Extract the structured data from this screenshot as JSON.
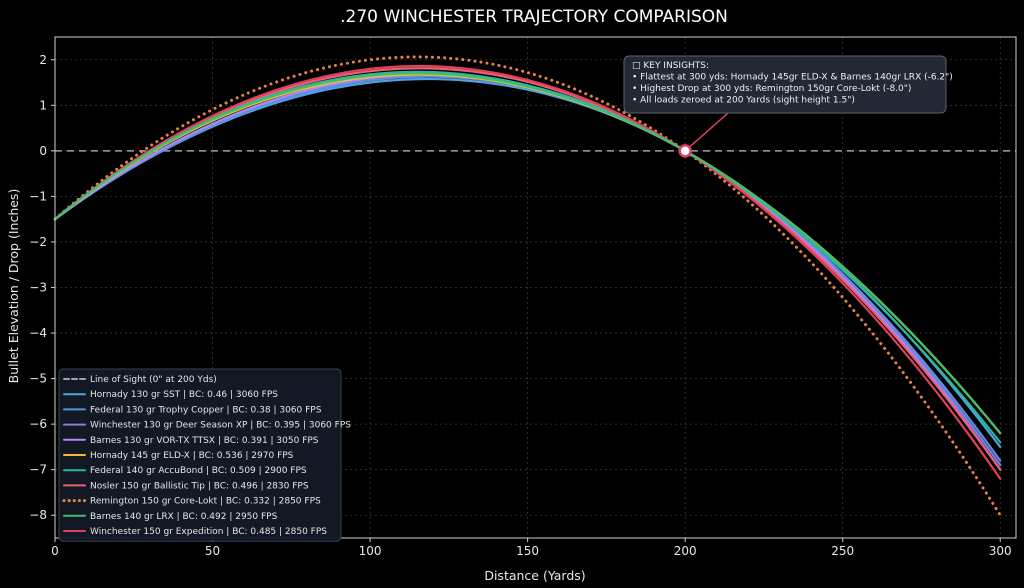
{
  "chart_data": {
    "type": "line",
    "title": ".270 WINCHESTER TRAJECTORY COMPARISON",
    "xlabel": "Distance (Yards)",
    "ylabel": "Bullet Elevation / Drop (Inches)",
    "xlim": [
      0,
      305
    ],
    "ylim": [
      -8.5,
      2.5
    ],
    "xticks": [
      "0",
      "50",
      "100",
      "150",
      "200",
      "250",
      "300"
    ],
    "yticks": [
      "2",
      "1",
      "0",
      "−1",
      "−2",
      "−3",
      "−4",
      "−5",
      "−6",
      "−7",
      "−8"
    ],
    "grid": true,
    "legend_position": "bottom-left",
    "line_of_sight": {
      "name": "Line of Sight (0\" at 200 Yds)",
      "y": 0,
      "color": "#9aa3b5",
      "style": "dashed"
    },
    "series": [
      {
        "name": "Hornady 130 gr SST | BC: 0.46 | 3060 FPS",
        "color": "#4fa3e0",
        "style": "solid",
        "x": [
          0,
          100,
          200,
          300
        ],
        "y": [
          -1.5,
          1.5,
          0,
          -6.5
        ]
      },
      {
        "name": "Federal 130 gr Trophy Copper | BC: 0.38 | 3060 FPS",
        "color": "#5b8fe0",
        "style": "solid",
        "x": [
          0,
          100,
          200,
          300
        ],
        "y": [
          -1.5,
          1.55,
          0,
          -6.8
        ]
      },
      {
        "name": "Winchester 130 gr Deer Season XP | BC: 0.395 | 3060 FPS",
        "color": "#7c82e0",
        "style": "solid",
        "x": [
          0,
          100,
          200,
          300
        ],
        "y": [
          -1.5,
          1.58,
          0,
          -6.9
        ]
      },
      {
        "name": "Barnes 130 gr VOR-TX TTSX | BC: 0.391 | 3050 FPS",
        "color": "#a78bfa",
        "style": "solid",
        "x": [
          0,
          100,
          200,
          300
        ],
        "y": [
          -1.5,
          1.6,
          0,
          -7.0
        ]
      },
      {
        "name": "Hornady 145 gr ELD-X | BC: 0.536 | 2970 FPS",
        "color": "#f5b93a",
        "style": "solid",
        "x": [
          0,
          100,
          200,
          300
        ],
        "y": [
          -1.5,
          1.62,
          0,
          -6.2
        ]
      },
      {
        "name": "Federal 140 gr AccuBond | BC: 0.509 | 2900 FPS",
        "color": "#2ab5a0",
        "style": "solid",
        "x": [
          0,
          100,
          200,
          300
        ],
        "y": [
          -1.5,
          1.68,
          0,
          -6.4
        ]
      },
      {
        "name": "Nosler 150 gr Ballistic Tip | BC: 0.496 | 2830 FPS",
        "color": "#e8607a",
        "style": "solid",
        "x": [
          0,
          100,
          200,
          300
        ],
        "y": [
          -1.5,
          1.75,
          0,
          -7.0
        ]
      },
      {
        "name": "Remington 150 gr Core-Lokt | BC: 0.332 | 2850 FPS",
        "color": "#e8804a",
        "style": "dotted",
        "x": [
          0,
          100,
          200,
          300
        ],
        "y": [
          -1.5,
          2.0,
          0,
          -8.0
        ]
      },
      {
        "name": "Barnes 140 gr LRX | BC: 0.492 | 2950 FPS",
        "color": "#3fbf6a",
        "style": "solid",
        "x": [
          0,
          100,
          200,
          300
        ],
        "y": [
          -1.5,
          1.65,
          0,
          -6.2
        ]
      },
      {
        "name": "Winchester 150 gr Expedition | BC: 0.485 | 2850 FPS",
        "color": "#e0405a",
        "style": "solid",
        "x": [
          0,
          100,
          200,
          300
        ],
        "y": [
          -1.5,
          1.8,
          0,
          -7.2
        ]
      }
    ],
    "zero_marker": {
      "x": 200,
      "y": 0
    },
    "annotation": {
      "lines": [
        "□ KEY INSIGHTS:",
        "• Flattest at 300 yds: Hornady 145gr ELD-X & Barnes 140gr LRX (-6.2\")",
        "• Highest Drop at 300 yds: Remington 150gr Core-Lokt (-8.0\")",
        "• All loads zeroed at 200 Yards (sight height 1.5\")"
      ]
    }
  }
}
